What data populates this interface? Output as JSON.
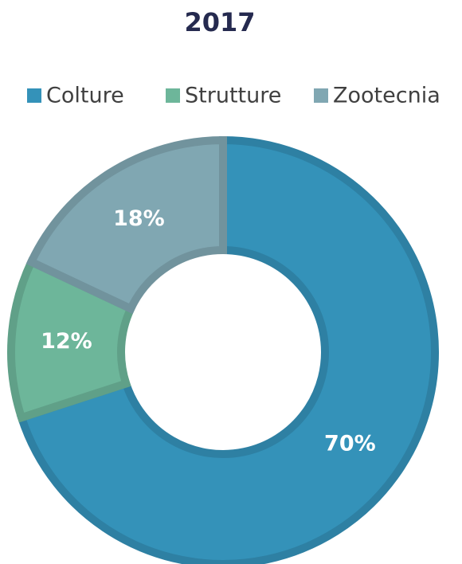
{
  "chart_data": {
    "type": "donut",
    "title": "2017",
    "categories": [
      "Colture",
      "Strutture",
      "Zootecnia"
    ],
    "values": [
      70,
      12,
      18
    ],
    "value_labels": [
      "70%",
      "12%",
      "18%"
    ],
    "colors": [
      "#3492b9",
      "#6db69a",
      "#80a7b2"
    ],
    "legend": "top"
  }
}
